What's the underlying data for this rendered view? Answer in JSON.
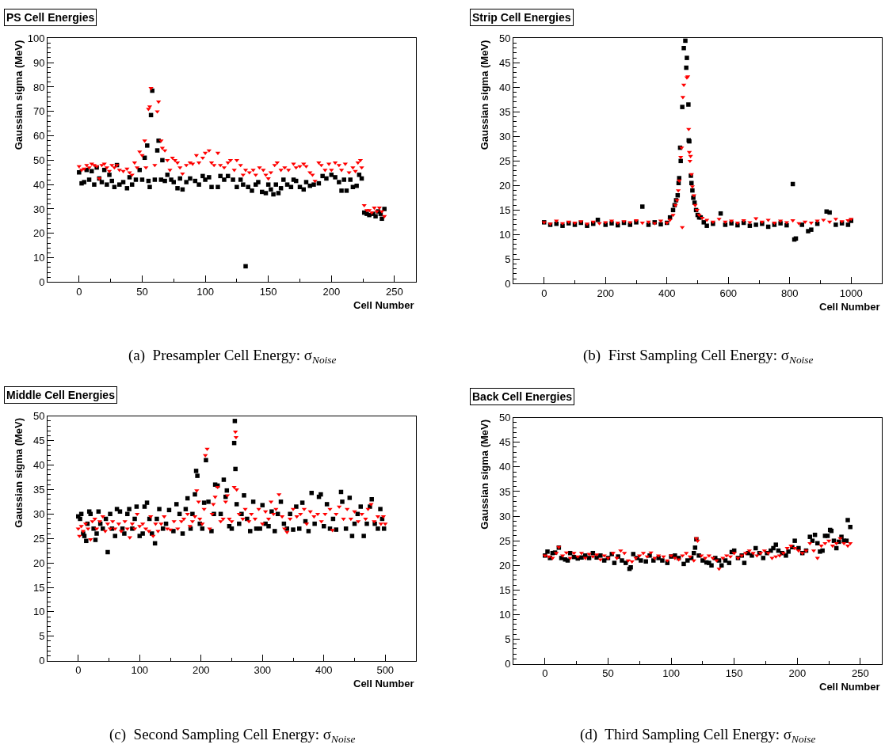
{
  "chart_data": [
    {
      "type": "scatter",
      "title": "PS Cell Energies",
      "xlabel": "Cell Number",
      "ylabel": "Gaussian sigma (MeV)",
      "xlim": [
        -25,
        267
      ],
      "xticks": [
        0,
        50,
        100,
        150,
        200,
        250
      ],
      "ylim": [
        0,
        100
      ],
      "yticks": [
        0,
        10,
        20,
        30,
        40,
        50,
        60,
        70,
        80,
        90,
        100
      ],
      "annotations": [
        "(a)  Presampler Cell Energy: σ$_{Noise}$"
      ],
      "series": [
        {
          "color": "#000000",
          "marker": "square",
          "x": [
            0,
            2,
            4,
            6,
            8,
            10,
            12,
            14,
            16,
            18,
            20,
            22,
            24,
            26,
            28,
            30,
            32,
            35,
            38,
            40,
            42,
            45,
            48,
            50,
            52,
            54,
            55,
            56,
            57,
            58,
            60,
            62,
            63,
            65,
            66,
            68,
            70,
            73,
            75,
            78,
            80,
            82,
            85,
            88,
            92,
            95,
            98,
            100,
            103,
            105,
            110,
            112,
            115,
            118,
            122,
            125,
            128,
            130,
            132,
            134,
            137,
            140,
            142,
            145,
            148,
            150,
            152,
            154,
            156,
            158,
            160,
            162,
            165,
            168,
            170,
            172,
            175,
            178,
            180,
            183,
            186,
            190,
            193,
            196,
            200,
            203,
            206,
            208,
            210,
            212,
            215,
            217,
            220,
            222,
            224,
            226,
            228,
            230,
            233,
            235,
            237,
            239,
            240,
            242
          ],
          "values": [
            45,
            40.5,
            41,
            46,
            42,
            45.5,
            40,
            47,
            42.5,
            41,
            46,
            40,
            44,
            41.5,
            39,
            48,
            40,
            41,
            38.5,
            43,
            40,
            42,
            46,
            42,
            51,
            56,
            41.5,
            39,
            68.5,
            78.5,
            42,
            54,
            58,
            42,
            50,
            41.5,
            44,
            42,
            41,
            38.5,
            42.5,
            38,
            41,
            42.5,
            41.5,
            40,
            43.5,
            42,
            43,
            39,
            39,
            43.5,
            42,
            43.5,
            42,
            39,
            42,
            40,
            6.5,
            39,
            37.5,
            40,
            41,
            37,
            36.5,
            40,
            38,
            36,
            40,
            36.5,
            38.5,
            42,
            40,
            39,
            42,
            41.5,
            39,
            38,
            41,
            39.5,
            40,
            40.5,
            43.5,
            42.5,
            44,
            43,
            41,
            37.5,
            42,
            37.5,
            42,
            39,
            39.5,
            44,
            42.5,
            28.5,
            28,
            27.5,
            28,
            27,
            29,
            28,
            26,
            30
          ]
        },
        {
          "color": "#ff0000",
          "marker": "triangle",
          "x": [
            0,
            2,
            4,
            6,
            8,
            10,
            12,
            14,
            16,
            18,
            20,
            22,
            24,
            26,
            28,
            30,
            32,
            35,
            38,
            40,
            42,
            44,
            46,
            48,
            50,
            52,
            53,
            55,
            56,
            57,
            60,
            62,
            63,
            65,
            66,
            68,
            70,
            72,
            74,
            76,
            78,
            80,
            82,
            85,
            88,
            90,
            93,
            95,
            98,
            100,
            103,
            105,
            107,
            110,
            112,
            115,
            118,
            120,
            123,
            125,
            128,
            130,
            132,
            135,
            138,
            140,
            143,
            146,
            148,
            150,
            152,
            155,
            157,
            160,
            163,
            166,
            170,
            172,
            175,
            178,
            180,
            183,
            185,
            187,
            190,
            192,
            195,
            198,
            200,
            203,
            206,
            208,
            211,
            214,
            217,
            219,
            221,
            223,
            224,
            226,
            228,
            230,
            232,
            234,
            236,
            238,
            240,
            242
          ],
          "values": [
            47.5,
            46,
            46.5,
            48,
            47,
            48.5,
            48,
            47.5,
            42.5,
            48,
            48.5,
            47,
            45.5,
            48,
            47,
            48,
            46,
            45.5,
            46.5,
            45,
            44,
            49,
            47,
            53.5,
            52,
            58,
            47,
            71,
            72,
            79.5,
            48,
            70,
            74,
            58,
            55,
            54,
            50,
            46,
            51,
            50,
            49,
            47,
            44.5,
            48,
            49,
            48.5,
            52,
            49,
            51,
            53,
            54,
            49,
            48,
            53,
            48,
            47,
            49,
            50,
            46,
            50,
            48,
            44,
            46,
            45,
            46,
            44,
            47,
            46,
            44,
            42.5,
            45,
            48,
            49,
            46,
            47,
            46,
            48.5,
            47,
            47.5,
            48.5,
            47.5,
            45,
            44,
            41.5,
            49,
            48,
            46,
            48.5,
            46,
            49,
            48,
            46,
            48.5,
            45,
            47,
            45.5,
            49,
            50,
            47,
            31.5,
            29.5,
            29.5,
            28.5,
            30.5,
            29,
            30.5,
            29,
            27
          ]
        }
      ]
    },
    {
      "type": "scatter",
      "title": "Strip Cell Energies",
      "xlabel": "Cell Number",
      "ylabel": "Gaussian sigma (MeV)",
      "xlim": [
        -100,
        1100
      ],
      "xticks": [
        0,
        200,
        400,
        600,
        800,
        1000
      ],
      "ylim": [
        0,
        50
      ],
      "yticks": [
        0,
        5,
        10,
        15,
        20,
        25,
        30,
        35,
        40,
        45,
        50
      ],
      "annotations": [
        "(b)  First Sampling Cell Energy: σ$_{Noise}$"
      ],
      "series": [
        {
          "color": "#000000",
          "marker": "square",
          "x": [
            0,
            20,
            40,
            60,
            80,
            100,
            120,
            140,
            160,
            175,
            200,
            220,
            240,
            260,
            280,
            300,
            320,
            340,
            360,
            380,
            400,
            410,
            420,
            425,
            430,
            435,
            438,
            440,
            443,
            445,
            450,
            455,
            460,
            463,
            465,
            470,
            471,
            473,
            478,
            480,
            483,
            486,
            490,
            495,
            500,
            505,
            510,
            520,
            530,
            550,
            575,
            590,
            610,
            630,
            650,
            670,
            690,
            710,
            730,
            750,
            770,
            790,
            810,
            815,
            820,
            840,
            860,
            870,
            890,
            920,
            930,
            950,
            970,
            990,
            1000
          ],
          "values": [
            12.5,
            12,
            12.2,
            11.8,
            12.3,
            12,
            12.4,
            11.8,
            12.2,
            13,
            12,
            12.3,
            11.9,
            12.4,
            12,
            12.5,
            15.7,
            12,
            12.5,
            12.1,
            12.4,
            13.5,
            15,
            16,
            17,
            18,
            20.5,
            21.5,
            27.7,
            25,
            36,
            48,
            49.5,
            44,
            46,
            36.5,
            29.2,
            29,
            22,
            20.5,
            19,
            17.5,
            16.5,
            15,
            14,
            13.5,
            13.5,
            12.5,
            11.8,
            12.2,
            14.3,
            12,
            12.3,
            11.9,
            12.4,
            11.8,
            12,
            12.2,
            11.6,
            12,
            12.3,
            11.9,
            20.3,
            9,
            9.2,
            12,
            10.7,
            11,
            12.2,
            14.7,
            14.5,
            12,
            12.3,
            12,
            12.8
          ]
        },
        {
          "color": "#ff0000",
          "marker": "triangle",
          "x": [
            0,
            20,
            40,
            60,
            80,
            100,
            120,
            140,
            160,
            180,
            200,
            220,
            240,
            260,
            280,
            300,
            320,
            340,
            360,
            380,
            400,
            410,
            420,
            428,
            433,
            437,
            440,
            445,
            448,
            450,
            452,
            455,
            465,
            468,
            471,
            473,
            475,
            477,
            480,
            483,
            488,
            492,
            498,
            505,
            515,
            530,
            550,
            570,
            590,
            610,
            630,
            650,
            670,
            690,
            710,
            730,
            750,
            770,
            790,
            810,
            830,
            850,
            870,
            890,
            910,
            930,
            950,
            970,
            990,
            1000
          ],
          "values": [
            12.5,
            12.2,
            12.8,
            12.3,
            12.6,
            12.4,
            12.7,
            12.2,
            12.6,
            12.3,
            12.5,
            12.8,
            12.4,
            12.7,
            12.5,
            12.9,
            12.4,
            12.6,
            12.3,
            12.8,
            12.4,
            13,
            14,
            16,
            17,
            19,
            21,
            25.8,
            27.7,
            11.5,
            38,
            40.5,
            42,
            42.2,
            31.5,
            26.8,
            25,
            26,
            22.3,
            19.8,
            18,
            16,
            15,
            14,
            13.4,
            13,
            12.6,
            13.2,
            12.6,
            12.8,
            12.4,
            12.9,
            12.5,
            13.3,
            12.6,
            13,
            12.4,
            12.8,
            12.5,
            12.9,
            12.3,
            12.6,
            12.4,
            12.8,
            13,
            12.6,
            13.2,
            12.7,
            12.9,
            13.2
          ]
        }
      ]
    },
    {
      "type": "scatter",
      "title": "Middle Cell Energies",
      "xlabel": "Cell Number",
      "ylabel": "Gaussian sigma (MeV)",
      "xlim": [
        -50,
        550
      ],
      "xticks": [
        0,
        100,
        200,
        300,
        400,
        500
      ],
      "ylim": [
        0,
        50
      ],
      "yticks": [
        0,
        5,
        10,
        15,
        20,
        25,
        30,
        35,
        40,
        45,
        50
      ],
      "annotations": [
        "(c)  Second Sampling Cell Energy: σ$_{Noise}$"
      ],
      "series": [
        {
          "color": "#000000",
          "marker": "square",
          "x": [
            0,
            3,
            5,
            8,
            10,
            13,
            15,
            18,
            20,
            25,
            28,
            30,
            33,
            36,
            40,
            45,
            48,
            52,
            55,
            60,
            63,
            68,
            72,
            75,
            80,
            83,
            88,
            92,
            95,
            100,
            105,
            108,
            112,
            116,
            120,
            125,
            128,
            132,
            138,
            143,
            148,
            155,
            160,
            165,
            170,
            175,
            178,
            183,
            186,
            190,
            192,
            194,
            198,
            202,
            205,
            208,
            212,
            217,
            221,
            223,
            227,
            232,
            237,
            240,
            242,
            246,
            250,
            254,
            255,
            256,
            258,
            262,
            266,
            270,
            275,
            280,
            285,
            290,
            296,
            300,
            305,
            310,
            315,
            320,
            325,
            330,
            335,
            340,
            345,
            350,
            355,
            360,
            365,
            370,
            375,
            380,
            385,
            392,
            395,
            400,
            405,
            410,
            415,
            420,
            428,
            430,
            436,
            442,
            446,
            450,
            455,
            460,
            465,
            470,
            475,
            478,
            483,
            488,
            492,
            495,
            498
          ],
          "values": [
            29.5,
            29,
            30,
            26,
            25.5,
            24.5,
            28,
            30.5,
            30,
            27,
            24.7,
            26,
            30.5,
            28,
            27,
            29,
            22.2,
            30,
            27,
            25.5,
            31,
            30.5,
            27,
            26,
            30,
            31,
            27,
            29,
            31.5,
            25.5,
            26,
            31.5,
            32.3,
            29,
            26,
            24,
            29,
            31,
            27,
            28,
            30.8,
            26.5,
            32,
            30,
            26,
            31,
            33.2,
            27,
            30,
            34,
            38.8,
            37.8,
            28,
            27,
            32.3,
            41,
            32.5,
            26.5,
            30,
            36,
            35.8,
            30,
            37,
            33.5,
            34.8,
            27.5,
            27,
            44.5,
            49,
            39.2,
            32,
            28,
            30,
            33.8,
            29,
            26.5,
            32.5,
            27,
            27,
            31.8,
            28,
            27.5,
            30.5,
            26.5,
            30,
            32.5,
            28,
            27,
            30,
            26.8,
            31.5,
            27,
            32.3,
            28.5,
            26.5,
            34.3,
            28,
            33.5,
            34,
            27.5,
            32,
            27,
            29,
            26.8,
            34.5,
            32.5,
            27,
            33.3,
            25.5,
            28,
            30,
            31.5,
            25.5,
            28,
            31.5,
            33,
            28,
            27,
            31,
            29,
            27
          ]
        },
        {
          "color": "#ff0000",
          "marker": "triangle",
          "x": [
            0,
            2,
            5,
            8,
            12,
            16,
            20,
            23,
            27,
            30,
            35,
            40,
            44,
            48,
            52,
            56,
            60,
            66,
            70,
            76,
            80,
            84,
            88,
            92,
            96,
            100,
            105,
            110,
            115,
            118,
            122,
            126,
            130,
            135,
            140,
            145,
            150,
            156,
            162,
            168,
            172,
            178,
            182,
            186,
            190,
            193,
            196,
            198,
            202,
            205,
            207,
            210,
            214,
            218,
            220,
            223,
            227,
            232,
            236,
            240,
            243,
            246,
            250,
            254,
            256,
            257,
            258,
            262,
            268,
            272,
            278,
            282,
            288,
            294,
            300,
            305,
            310,
            314,
            318,
            322,
            327,
            332,
            336,
            340,
            345,
            350,
            356,
            362,
            368,
            372,
            378,
            384,
            390,
            396,
            402,
            410,
            414,
            420,
            425,
            432,
            438,
            444,
            450,
            456,
            462,
            468,
            472,
            477,
            482,
            488,
            493,
            497,
            500
          ],
          "values": [
            27,
            25.5,
            27.5,
            26.5,
            28,
            27,
            24.8,
            28.5,
            29,
            27,
            28.5,
            29.5,
            26.5,
            28,
            27,
            28.5,
            27,
            28,
            26.5,
            28.5,
            27,
            25.2,
            28,
            27,
            30,
            27.5,
            28,
            27,
            26.5,
            29.5,
            25.5,
            28,
            26.5,
            28,
            29.5,
            27,
            26.8,
            28.5,
            27,
            28.5,
            29,
            30,
            27.5,
            28.5,
            29.5,
            34.8,
            32.5,
            29,
            28,
            31,
            42,
            43.3,
            27,
            30,
            32,
            33.5,
            35.5,
            28.5,
            29,
            32.5,
            33.8,
            29,
            28.5,
            35.5,
            46.8,
            45.7,
            35,
            30,
            29,
            31,
            28.5,
            30,
            29,
            31,
            28,
            30.5,
            29,
            32.5,
            30,
            31,
            34,
            29.5,
            27,
            26.3,
            29,
            31,
            29.5,
            30,
            31,
            28,
            30.5,
            29.5,
            30,
            28.5,
            30,
            31,
            26.7,
            30,
            31.5,
            29,
            31,
            29,
            30.5,
            28.5,
            30,
            29,
            31,
            32,
            28.5,
            29.5,
            28,
            29.5,
            28
          ]
        }
      ]
    },
    {
      "type": "scatter",
      "title": "Back Cell Energies",
      "xlabel": "Cell Number",
      "ylabel": "Gaussian sigma (MeV)",
      "xlim": [
        -25,
        267
      ],
      "xticks": [
        0,
        50,
        100,
        150,
        200,
        250
      ],
      "ylim": [
        0,
        50
      ],
      "yticks": [
        0,
        5,
        10,
        15,
        20,
        25,
        30,
        35,
        40,
        45,
        50
      ],
      "annotations": [
        "(d)  Third Sampling Cell Energy: σ$_{Noise}$"
      ],
      "series": [
        {
          "color": "#000000",
          "marker": "square",
          "x": [
            0,
            2,
            4,
            6,
            8,
            11,
            13,
            16,
            18,
            20,
            23,
            26,
            29,
            32,
            35,
            38,
            41,
            44,
            47,
            50,
            53,
            55,
            58,
            61,
            64,
            67,
            68,
            70,
            73,
            76,
            80,
            83,
            86,
            90,
            93,
            97,
            100,
            103,
            106,
            110,
            113,
            116,
            118,
            119,
            120,
            122,
            125,
            128,
            130,
            132,
            135,
            138,
            140,
            143,
            146,
            148,
            150,
            153,
            156,
            158,
            161,
            164,
            167,
            170,
            173,
            176,
            179,
            181,
            183,
            185,
            188,
            191,
            193,
            196,
            198,
            201,
            204,
            207,
            210,
            212,
            214,
            216,
            218,
            220,
            222,
            224,
            226,
            227,
            229,
            231,
            233,
            235,
            237,
            239,
            240,
            242
          ],
          "values": [
            22,
            22.8,
            21.5,
            22.5,
            22.6,
            23.6,
            21.5,
            21.2,
            21,
            22.5,
            21.7,
            21.4,
            21.6,
            22,
            21.5,
            22.5,
            21.6,
            22,
            21,
            21.5,
            22.3,
            20.5,
            21.8,
            21,
            20.5,
            19.3,
            19.6,
            22.3,
            21.5,
            21,
            20.8,
            22,
            21,
            21.5,
            21,
            20.5,
            21.8,
            22,
            21.5,
            20.3,
            21,
            21.5,
            22.5,
            23.6,
            25.3,
            22,
            21,
            20.6,
            20.5,
            20,
            21.5,
            21,
            20,
            21,
            20.5,
            22.7,
            23,
            21.5,
            22,
            20.5,
            22.5,
            22,
            23.5,
            22.5,
            21.5,
            22.5,
            23,
            23.5,
            24.2,
            23,
            22.5,
            22,
            22.8,
            23.7,
            25,
            23.5,
            22.5,
            23,
            25.8,
            25,
            26.2,
            24.5,
            22.8,
            23,
            26,
            26,
            27.2,
            27,
            25,
            23.5,
            24.8,
            25.8,
            25,
            25,
            29.2,
            27.8
          ]
        },
        {
          "color": "#ff0000",
          "marker": "triangle",
          "x": [
            0,
            3,
            6,
            9,
            11,
            14,
            17,
            20,
            23,
            26,
            29,
            32,
            35,
            38,
            41,
            44,
            47,
            50,
            54,
            57,
            60,
            63,
            66,
            69,
            72,
            75,
            78,
            81,
            84,
            87,
            90,
            94,
            97,
            100,
            103,
            106,
            109,
            112,
            115,
            118,
            120,
            121,
            124,
            127,
            130,
            133,
            136,
            138,
            141,
            144,
            147,
            150,
            153,
            156,
            159,
            162,
            165,
            168,
            171,
            174,
            177,
            180,
            183,
            186,
            189,
            192,
            195,
            198,
            201,
            204,
            207,
            210,
            213,
            216,
            219,
            222,
            225,
            228,
            231,
            234,
            237,
            240,
            242
          ],
          "values": [
            22,
            21.8,
            21.5,
            22.5,
            23.7,
            22,
            22.6,
            21.5,
            22.5,
            21.8,
            22.5,
            21.5,
            22.3,
            21.8,
            22.2,
            21.2,
            22,
            21.5,
            22.5,
            21.5,
            23,
            22.5,
            21,
            20.8,
            21.5,
            22,
            22.5,
            21.8,
            22.6,
            21.5,
            22,
            21.8,
            21,
            22,
            21.5,
            21.2,
            22,
            22.5,
            21.8,
            21,
            25.5,
            25,
            22,
            21.5,
            22,
            21.5,
            21,
            19.3,
            21.5,
            22,
            21.8,
            22.5,
            21.5,
            22,
            22.5,
            23,
            22.5,
            22,
            22.5,
            23,
            22.5,
            21.5,
            21.8,
            22,
            22.5,
            23.5,
            24,
            23.5,
            23,
            22.5,
            23,
            24.5,
            23,
            21.5,
            24,
            24.5,
            25,
            24,
            24.5,
            25.5,
            24.5,
            24,
            24.5
          ]
        }
      ]
    }
  ]
}
